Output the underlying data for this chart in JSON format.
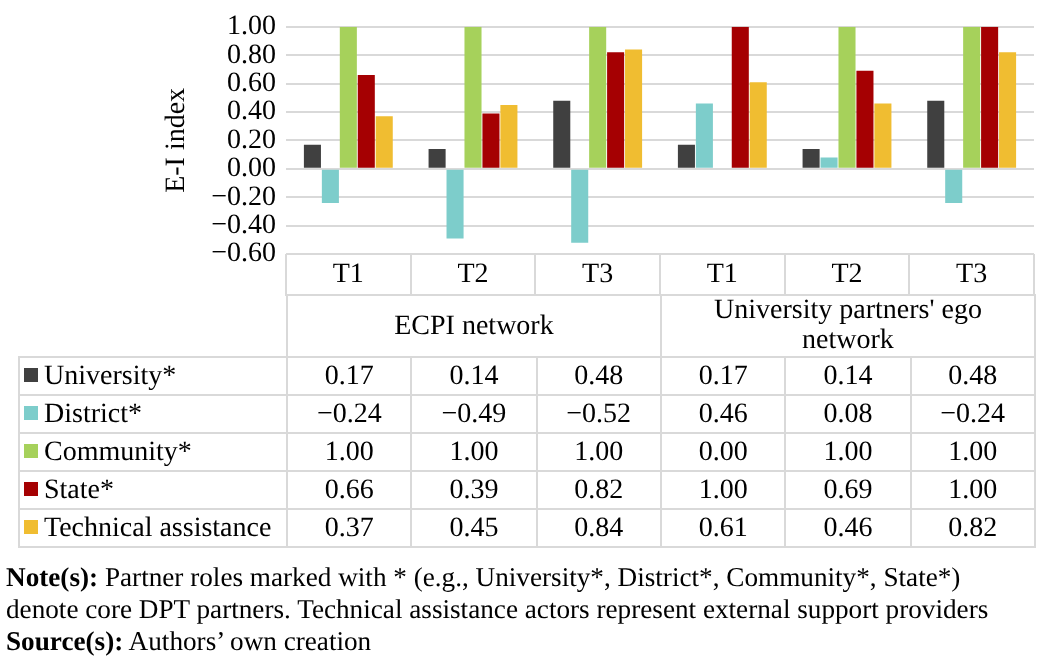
{
  "chart_data": {
    "type": "bar",
    "ylabel": "E-I index",
    "categories": [
      "T1",
      "T2",
      "T3",
      "T1",
      "T2",
      "T3"
    ],
    "series": [
      {
        "name": "University*",
        "color": "#404040",
        "values": [
          0.17,
          0.14,
          0.48,
          0.17,
          0.14,
          0.48
        ],
        "value_labels": [
          "0.17",
          "0.14",
          "0.48",
          "0.17",
          "0.14",
          "0.48"
        ]
      },
      {
        "name": "District*",
        "color": "#7dcdcb",
        "values": [
          -0.24,
          -0.49,
          -0.52,
          0.46,
          0.08,
          -0.24
        ],
        "value_labels": [
          "−0.24",
          "−0.49",
          "−0.52",
          "0.46",
          "0.08",
          "−0.24"
        ]
      },
      {
        "name": "Community*",
        "color": "#a6d15b",
        "values": [
          1.0,
          1.0,
          1.0,
          0.0,
          1.0,
          1.0
        ],
        "value_labels": [
          "1.00",
          "1.00",
          "1.00",
          "0.00",
          "1.00",
          "1.00"
        ]
      },
      {
        "name": "State*",
        "color": "#a50002",
        "values": [
          0.66,
          0.39,
          0.82,
          1.0,
          0.69,
          1.0
        ],
        "value_labels": [
          "0.66",
          "0.39",
          "0.82",
          "1.00",
          "0.69",
          "1.00"
        ]
      },
      {
        "name": "Technical assistance",
        "color": "#f0bd31",
        "values": [
          0.37,
          0.45,
          0.84,
          0.61,
          0.46,
          0.82
        ],
        "value_labels": [
          "0.37",
          "0.45",
          "0.84",
          "0.61",
          "0.46",
          "0.82"
        ]
      }
    ],
    "ylim": [
      -0.6,
      1.0
    ],
    "yticks": [
      {
        "value": -0.6,
        "label": "−0.60"
      },
      {
        "value": -0.4,
        "label": "−0.40"
      },
      {
        "value": -0.2,
        "label": "−0.20"
      },
      {
        "value": 0,
        "label": "0.00"
      },
      {
        "value": 0.2,
        "label": "0.20"
      },
      {
        "value": 0.4,
        "label": "0.40"
      },
      {
        "value": 0.6,
        "label": "0.60"
      },
      {
        "value": 0.8,
        "label": "0.80"
      },
      {
        "value": 1.0,
        "label": "1.00"
      }
    ],
    "grid": "y",
    "legend": "bottom",
    "annotations": [
      "ECPI network",
      "University partners' ego network",
      "Note(s): Partner roles marked with * (e.g., University*, District*, Community*, State*) denote core DPT partners. Technical assistance actors represent external support providers",
      "Source(s): Authors’ own creation"
    ]
  }
}
